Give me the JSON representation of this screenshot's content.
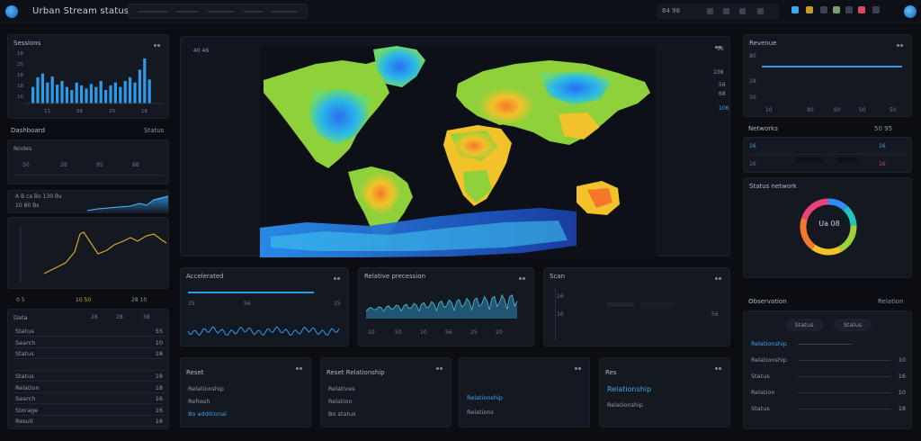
{
  "app": {
    "title": "Urban Stream status"
  },
  "topbar": {
    "search_placeholder": "",
    "right_label": "84 98",
    "icon_colors": [
      "#3fa9f5",
      "#c59b2a",
      "#7aa06a",
      "#d84a5a",
      "#4a8ad8",
      "#8a93a3"
    ]
  },
  "left": {
    "sessions": {
      "title": "Sessions",
      "ticks": [
        "18",
        "25",
        "18",
        "18",
        "10"
      ],
      "xticks": [
        "11",
        "58",
        "20",
        "18"
      ],
      "values": [
        22,
        35,
        40,
        28,
        36,
        25,
        30,
        22,
        18,
        28,
        24,
        20,
        26,
        22,
        30,
        18,
        24,
        28,
        22,
        30,
        35,
        28,
        45,
        60,
        32
      ]
    },
    "metrics_label": "Dashboard",
    "metrics_value": "Status",
    "mini_table": {
      "label": "Nodes",
      "cols": [
        "50",
        "28",
        "95",
        "88"
      ]
    },
    "spark_labels": [
      "A B ca Bo 130 Bv",
      "10 80 Bs"
    ],
    "line_labels": [
      "0 5",
      "10 50",
      "28 10"
    ],
    "list": {
      "title": "Data",
      "right": [
        "28",
        "28",
        "38"
      ],
      "rows": [
        {
          "label": "Status",
          "value": "55"
        },
        {
          "label": "Search",
          "value": "10"
        },
        {
          "label": "Status",
          "value": "18"
        },
        {
          "label": "",
          "value": ""
        },
        {
          "label": "Status",
          "value": "18"
        },
        {
          "label": "Relation",
          "value": "18"
        },
        {
          "label": "Search",
          "value": "16"
        },
        {
          "label": "Storage",
          "value": "16"
        },
        {
          "label": "Result",
          "value": "18"
        }
      ]
    }
  },
  "map": {
    "header": "40 46",
    "right_labels": [
      "56",
      "108",
      "56",
      "68",
      "106"
    ]
  },
  "bottom": {
    "p1": {
      "title": "Accelerated",
      "labels": [
        "35",
        "56",
        "15"
      ]
    },
    "p2": {
      "title": "Relative precession",
      "labels": [
        "10",
        "50",
        "10",
        "56",
        "25",
        "20"
      ]
    },
    "p3": {
      "title": "Scan",
      "labels": [
        "16",
        "16",
        "56"
      ]
    },
    "c1": {
      "title": "Reset",
      "items": [
        "Relationship",
        "Refresh",
        "Bo additional"
      ]
    },
    "c2": {
      "title": "Reset Relationship",
      "items": [
        "Relatives",
        "Relation",
        "Bo status"
      ]
    },
    "c3": {
      "title": "",
      "items": [
        "Relationship",
        "Relations"
      ]
    },
    "c4": {
      "title": "Res",
      "items": [
        "Relationship",
        "Relationship"
      ]
    }
  },
  "right": {
    "p1": {
      "title": "Revenue",
      "ticks": [
        "80",
        "18",
        "50"
      ],
      "xticks": [
        "10",
        "80",
        "60",
        "50",
        "50"
      ]
    },
    "section1": {
      "label": "Networks",
      "value": "50 95"
    },
    "section1_rows": {
      "left": [
        "16",
        "16"
      ],
      "right": [
        "16",
        "16"
      ]
    },
    "donut": {
      "title": "Status network",
      "center": "Ua 08",
      "segments": [
        0.12,
        0.12,
        0.18,
        0.18,
        0.2,
        0.2
      ],
      "colors": [
        "#2f8ef5",
        "#24c3c3",
        "#9ed13a",
        "#f2c22a",
        "#f07830",
        "#e8437a"
      ]
    },
    "section2": {
      "label": "Observation",
      "value": "Relation"
    },
    "list": {
      "buttons": [
        "Status",
        "Status"
      ],
      "rows": [
        {
          "label": "Relationship",
          "value": ""
        },
        {
          "label": "Relationship",
          "value": "10"
        },
        {
          "label": "Status",
          "value": "16"
        },
        {
          "label": "Relation",
          "value": "10"
        },
        {
          "label": "Status",
          "value": "18"
        }
      ]
    }
  },
  "colors": {
    "accent": "#2f9be8",
    "panel": "#141821",
    "bg": "#0b0d12"
  }
}
